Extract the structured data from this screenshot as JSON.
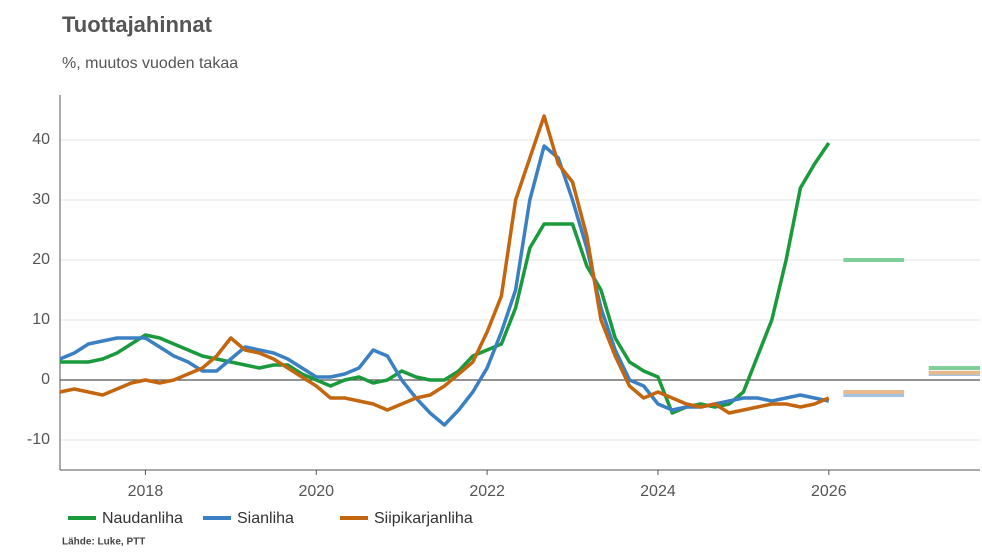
{
  "chart_data": {
    "type": "line",
    "title": "Tuottajahinnat",
    "subtitle": "%, muutos vuoden takaa",
    "source": "Lähde: Luke, PTT",
    "xlim": [
      2017.0,
      2027.77
    ],
    "ylim": [
      -15,
      47.5
    ],
    "xticks": [
      2018,
      2020,
      2022,
      2024,
      2026
    ],
    "yticks": [
      -10,
      0,
      10,
      20,
      30,
      40
    ],
    "grid": true,
    "legend": "bottom",
    "x": [
      2017,
      2017.167,
      2017.333,
      2017.5,
      2017.667,
      2017.833,
      2018,
      2018.167,
      2018.333,
      2018.5,
      2018.667,
      2018.833,
      2019,
      2019.167,
      2019.333,
      2019.5,
      2019.667,
      2019.833,
      2020,
      2020.167,
      2020.333,
      2020.5,
      2020.667,
      2020.833,
      2021,
      2021.167,
      2021.333,
      2021.5,
      2021.667,
      2021.833,
      2022,
      2022.167,
      2022.333,
      2022.5,
      2022.667,
      2022.833,
      2023,
      2023.167,
      2023.333,
      2023.5,
      2023.667,
      2023.833,
      2024,
      2024.167,
      2024.333,
      2024.5,
      2024.667,
      2024.833,
      2025,
      2025.167,
      2025.333,
      2025.5,
      2025.667,
      2025.833,
      2026
    ],
    "forecast_x": [
      [
        2026.17,
        2026.88
      ],
      [
        2027.17,
        2027.77
      ]
    ],
    "series": [
      {
        "name": "Naudanliha",
        "color": "#1a9a3c",
        "forecast_color": "#7fcf9a",
        "values": [
          3,
          3,
          3,
          3.5,
          4.5,
          6,
          7.5,
          7,
          6,
          5,
          4,
          3.5,
          3,
          2.5,
          2,
          2.5,
          2.5,
          1,
          0,
          -1,
          0,
          0.5,
          -0.5,
          0,
          1.5,
          0.5,
          0,
          0,
          1.5,
          4,
          5,
          6,
          12,
          22,
          26,
          26,
          26,
          19,
          15,
          7,
          3,
          1.5,
          0.5,
          -5.5,
          -4.5,
          -4,
          -4.5,
          -4,
          -2,
          4,
          10,
          20,
          32,
          36,
          39.5
        ],
        "forecast_values": [
          20,
          2
        ]
      },
      {
        "name": "Sianliha",
        "color": "#3a80c3",
        "forecast_color": "#a3c3e3",
        "values": [
          3.5,
          4.5,
          6,
          6.5,
          7,
          7,
          7,
          5.5,
          4,
          3,
          1.5,
          1.5,
          3.5,
          5.5,
          5,
          4.5,
          3.5,
          2,
          0.5,
          0.5,
          1,
          2,
          5,
          4,
          0,
          -3,
          -5.5,
          -7.5,
          -5,
          -2,
          2,
          8,
          15,
          30,
          39,
          37,
          30,
          22,
          12,
          5,
          0,
          -1,
          -4,
          -5,
          -4.5,
          -4.5,
          -4,
          -3.5,
          -3,
          -3,
          -3.5,
          -3,
          -2.5,
          -3,
          -3.5
        ],
        "forecast_values": [
          -2.5,
          1
        ]
      },
      {
        "name": "Siipikarjanliha",
        "color": "#c4660f",
        "forecast_color": "#e8b98c",
        "values": [
          -2,
          -1.5,
          -2,
          -2.5,
          -1.5,
          -0.5,
          0,
          -0.5,
          0,
          1,
          2,
          4,
          7,
          5,
          4.5,
          3.5,
          2,
          0.5,
          -1,
          -3,
          -3,
          -3.5,
          -4,
          -5,
          -4,
          -3,
          -2.5,
          -1,
          1,
          3,
          8,
          14,
          30,
          37,
          44,
          36,
          33,
          24,
          10,
          4,
          -1,
          -3,
          -2,
          -3,
          -4,
          -4.5,
          -4,
          -5.5,
          -5,
          -4.5,
          -4,
          -4,
          -4.5,
          -4,
          -3
        ],
        "forecast_values": [
          -2,
          1.2
        ]
      }
    ]
  }
}
